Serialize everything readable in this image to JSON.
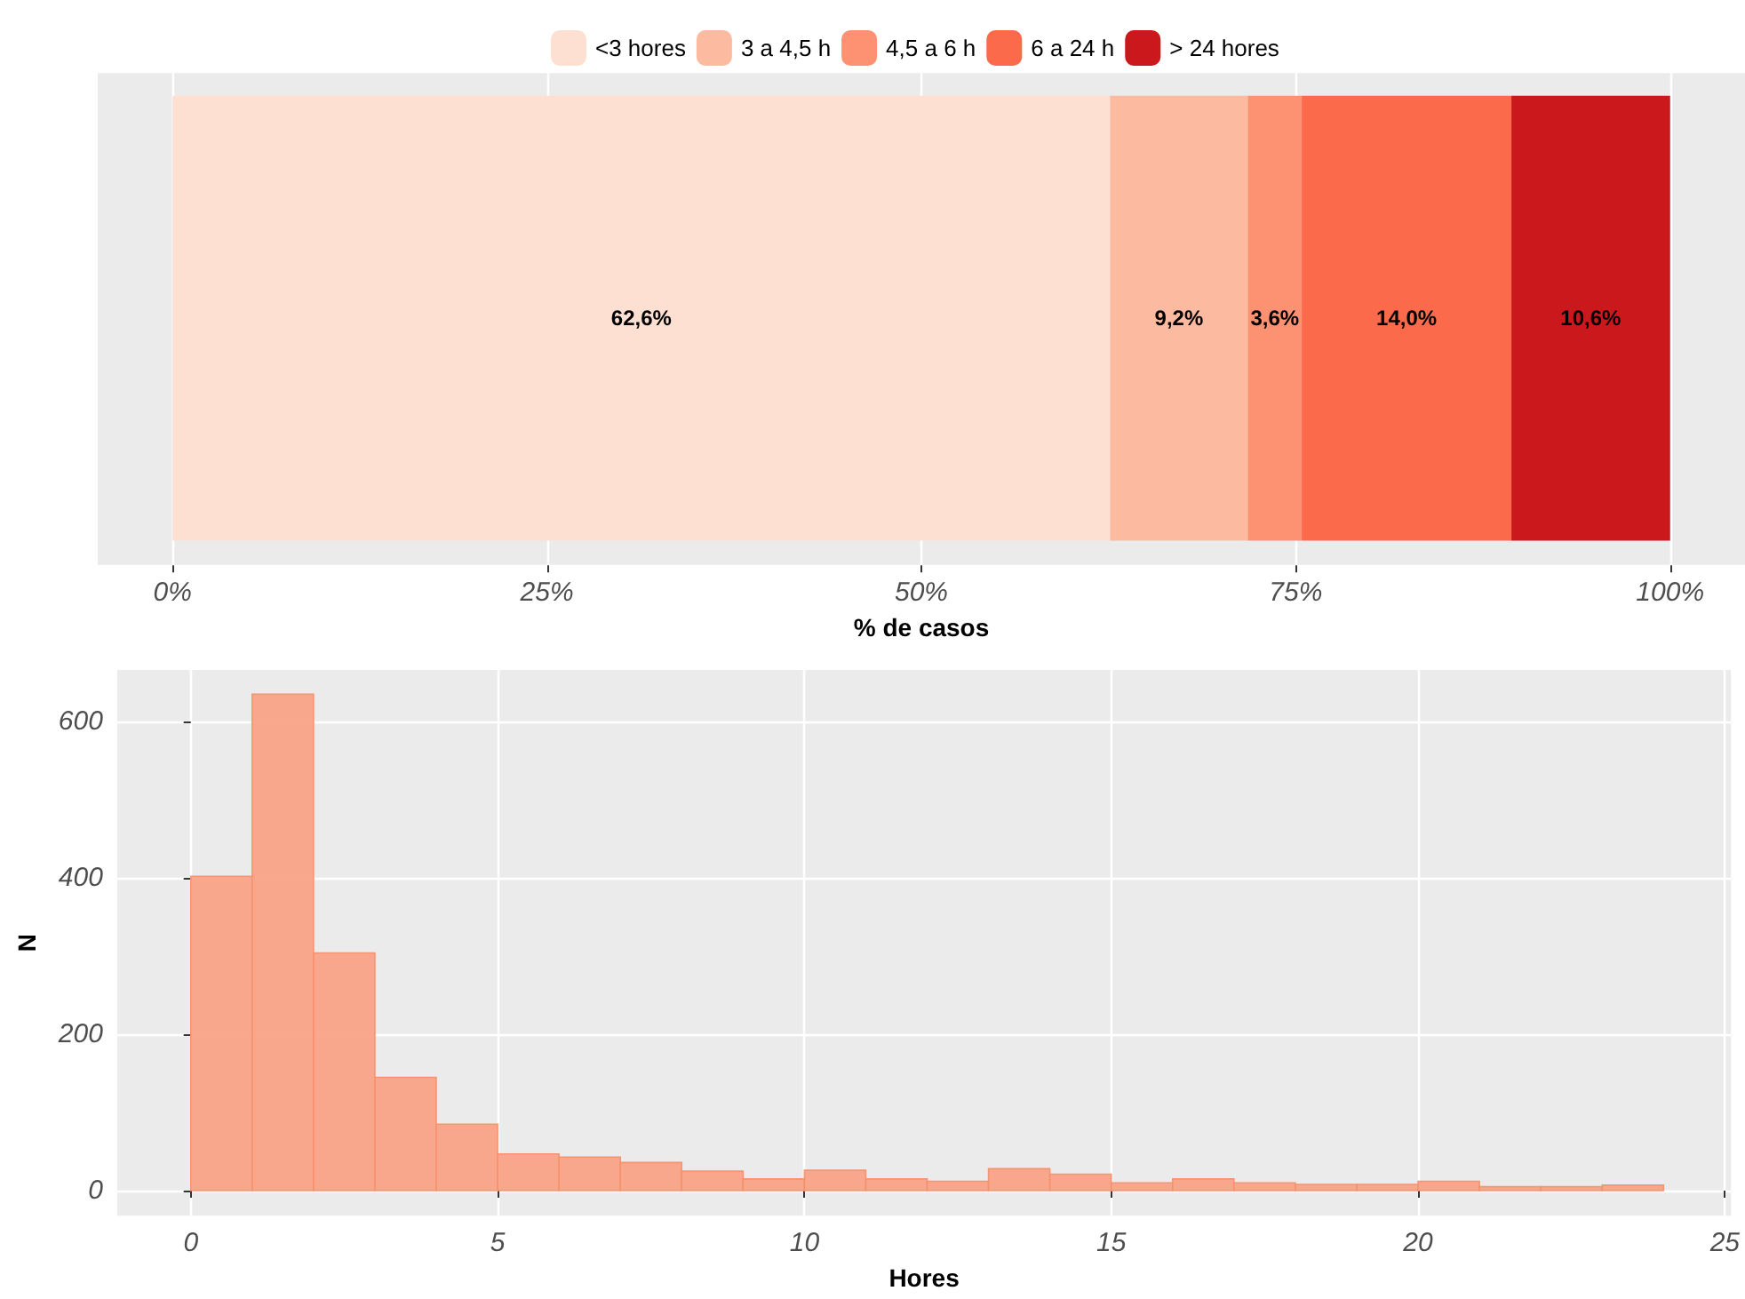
{
  "chart_data": [
    {
      "type": "bar",
      "orientation": "horizontal",
      "stacked": true,
      "categories": [
        null
      ],
      "xlabel": "% de casos",
      "xlim": [
        -5,
        105
      ],
      "xticks": [
        {
          "value": 0,
          "label": "0%"
        },
        {
          "value": 25,
          "label": "25%"
        },
        {
          "value": 50,
          "label": "50%"
        },
        {
          "value": 75,
          "label": "75%"
        },
        {
          "value": 100,
          "label": "100%"
        }
      ],
      "series": [
        {
          "name": "<3 hores",
          "color": "#fee0d2",
          "values": [
            62.6
          ],
          "value_labels": [
            "62,6%"
          ]
        },
        {
          "name": "3 a 4,5 h",
          "color": "#fcbba1",
          "values": [
            9.2
          ],
          "value_labels": [
            "9,2%"
          ]
        },
        {
          "name": "4,5 a 6 h",
          "color": "#fc9272",
          "values": [
            3.6
          ],
          "value_labels": [
            "3,6%"
          ]
        },
        {
          "name": "6 a 24 h",
          "color": "#fb6a4a",
          "values": [
            14.0
          ],
          "value_labels": [
            "14,0%"
          ]
        },
        {
          "name": "> 24 hores",
          "color": "#cb181d",
          "values": [
            10.6
          ],
          "value_labels": [
            "10,6%"
          ]
        }
      ],
      "legend": "top",
      "grid": true,
      "tick_labels": "x"
    },
    {
      "type": "histogram",
      "xlabel": "Hores",
      "ylabel": "N",
      "color": "#f9a388",
      "bins": [
        0,
        1,
        2,
        3,
        4,
        5,
        6,
        7,
        8,
        9,
        10,
        11,
        12,
        13,
        14,
        15,
        16,
        17,
        18,
        19,
        20,
        21,
        22,
        23,
        24
      ],
      "values": [
        402,
        635,
        304,
        145,
        85,
        47,
        43,
        36,
        25,
        15,
        26,
        15,
        12,
        28,
        21,
        10,
        15,
        10,
        8,
        8,
        12,
        5,
        5,
        7
      ],
      "xlim": [
        -1.2,
        25.1
      ],
      "xticks": [
        0,
        5,
        10,
        15,
        20,
        25
      ],
      "ylim": [
        -32,
        666
      ],
      "yticks": [
        0,
        200,
        400,
        600
      ],
      "grid": true,
      "legend": false
    }
  ]
}
